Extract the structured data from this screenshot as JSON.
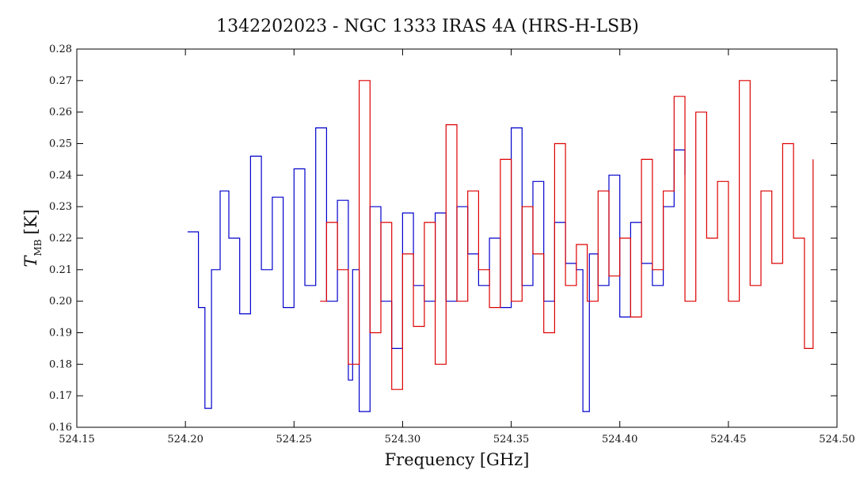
{
  "chart_data": {
    "type": "line",
    "title": "1342202023 - NGC 1333 IRAS 4A (HRS-H-LSB)",
    "xlabel": "Frequency [GHz]",
    "ylabel": "T",
    "ylabel_sub": "MB",
    "ylabel_unit": "[K]",
    "xlim": [
      524.15,
      524.5
    ],
    "ylim": [
      0.16,
      0.28
    ],
    "xticks": [
      "524.15",
      "524.20",
      "524.25",
      "524.30",
      "524.35",
      "524.40",
      "524.45",
      "524.50"
    ],
    "yticks": [
      "0.16",
      "0.17",
      "0.18",
      "0.19",
      "0.20",
      "0.21",
      "0.22",
      "0.23",
      "0.24",
      "0.25",
      "0.26",
      "0.27",
      "0.28"
    ],
    "grid": false,
    "step": true,
    "series": [
      {
        "color": "#0000cc",
        "x": [
          524.201,
          524.206,
          524.209,
          524.212,
          524.216,
          524.22,
          524.225,
          524.23,
          524.235,
          524.24,
          524.245,
          524.25,
          524.255,
          524.26,
          524.265,
          524.27,
          524.275,
          524.277,
          524.28,
          524.285,
          524.29,
          524.295,
          524.3,
          524.305,
          524.31,
          524.315,
          524.32,
          524.325,
          524.33,
          524.335,
          524.34,
          524.345,
          524.35,
          524.355,
          524.36,
          524.365,
          524.37,
          524.375,
          524.38,
          524.383,
          524.386,
          524.39,
          524.395,
          524.4,
          524.405,
          524.41,
          524.415,
          524.42,
          524.425,
          524.43
        ],
        "y": [
          0.222,
          0.198,
          0.166,
          0.21,
          0.235,
          0.22,
          0.196,
          0.246,
          0.21,
          0.233,
          0.198,
          0.242,
          0.205,
          0.255,
          0.2,
          0.232,
          0.175,
          0.21,
          0.165,
          0.23,
          0.2,
          0.185,
          0.228,
          0.205,
          0.2,
          0.228,
          0.2,
          0.23,
          0.215,
          0.205,
          0.22,
          0.198,
          0.255,
          0.205,
          0.238,
          0.2,
          0.225,
          0.212,
          0.21,
          0.165,
          0.215,
          0.205,
          0.24,
          0.195,
          0.225,
          0.212,
          0.205,
          0.23,
          0.248,
          0.24
        ]
      },
      {
        "color": "#dd0000",
        "x": [
          524.262,
          524.265,
          524.27,
          524.275,
          524.28,
          524.285,
          524.29,
          524.295,
          524.3,
          524.305,
          524.31,
          524.315,
          524.32,
          524.325,
          524.33,
          524.335,
          524.34,
          524.345,
          524.35,
          524.355,
          524.36,
          524.365,
          524.37,
          524.375,
          524.38,
          524.385,
          524.39,
          524.395,
          524.4,
          524.405,
          524.41,
          524.415,
          524.42,
          524.425,
          524.43,
          524.435,
          524.44,
          524.445,
          524.45,
          524.455,
          524.46,
          524.465,
          524.47,
          524.475,
          524.48,
          524.485,
          524.489
        ],
        "y": [
          0.2,
          0.225,
          0.21,
          0.18,
          0.27,
          0.19,
          0.225,
          0.172,
          0.215,
          0.192,
          0.225,
          0.18,
          0.256,
          0.2,
          0.235,
          0.21,
          0.198,
          0.245,
          0.2,
          0.23,
          0.215,
          0.19,
          0.25,
          0.205,
          0.218,
          0.2,
          0.235,
          0.208,
          0.22,
          0.195,
          0.245,
          0.21,
          0.235,
          0.265,
          0.2,
          0.26,
          0.22,
          0.238,
          0.2,
          0.27,
          0.205,
          0.235,
          0.212,
          0.25,
          0.22,
          0.185,
          0.245
        ]
      }
    ]
  }
}
